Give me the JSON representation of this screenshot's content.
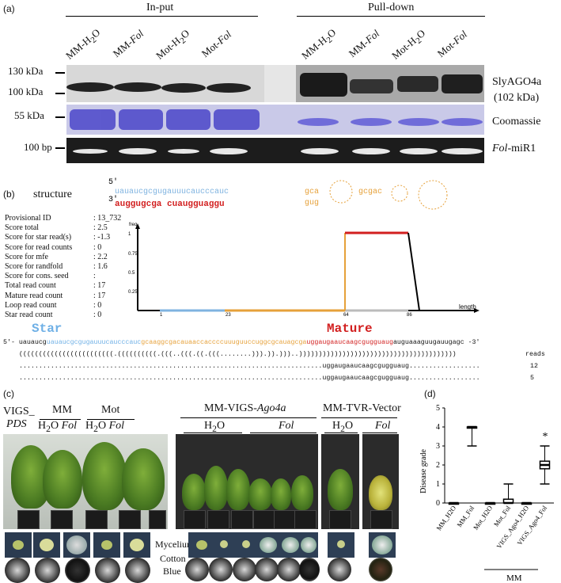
{
  "panel_a": {
    "label": "(a)",
    "input_header": "In-put",
    "pulldown_header": "Pull-down",
    "lanes": [
      "MM-H₂O",
      "MM-Fol",
      "Mot-H₂O",
      "Mot-Fol",
      "MM-H₂O",
      "MM-Fol",
      "Mot-H₂O",
      "Mot-Fol"
    ],
    "markers": [
      "130 kDa",
      "100 kDa",
      "55 kDa",
      "100 bp"
    ],
    "right_labels": {
      "ago": "SlyAGO4a",
      "ago_size": "(102 kDa)",
      "coomassie": "Coomassie",
      "mir_italic": "Fol",
      "mir_rest": "-miR1"
    }
  },
  "panel_b": {
    "label": "(b)",
    "structure_label": "structure",
    "five_prime": "5'",
    "three_prime": "3'",
    "stats": [
      [
        "Provisional ID",
        ": 13_732"
      ],
      [
        "Score total",
        ": 2.5"
      ],
      [
        "Score for star read(s)",
        ": -1.3"
      ],
      [
        "Score for read counts",
        ": 0"
      ],
      [
        "Score for mfe",
        ": 2.2"
      ],
      [
        "Score for randfold",
        ": 1.6"
      ],
      [
        "Score for cons. seed",
        ":"
      ],
      [
        "Total read count",
        ": 17"
      ],
      [
        "Mature read count",
        ": 17"
      ],
      [
        "Loop read count",
        ": 0"
      ],
      [
        "Star read count",
        ": 0"
      ]
    ],
    "plot": {
      "ylabel": "freq.",
      "xlabel": "length",
      "yticks": [
        "1",
        "0.75",
        "0.5",
        "0.25"
      ],
      "xticks": [
        "1",
        "23",
        "64",
        "86"
      ]
    },
    "star_label": "Star",
    "mature_label": "Mature",
    "seq_prefix": "5'-",
    "seq_start": "uauaucg",
    "seq_star": "uauaucgcgugauuucaucccauc",
    "seq_loop": "gcaaggcgacauaaccaccccuuuguuccuggcgcauagcga",
    "seq_mature": "uggaugaaucaagcgugguaug",
    "seq_end": "auguaaaguugauugagc",
    "seq_suffix": "-3'",
    "dotbracket": "((((((((((((((((((((((((.((((((((((.(((..(((.((.(((........))).)).)))..))))))))))))))))))))))))))))))))))))))))",
    "reads_header": "reads",
    "read1": "uggaugaaucaagcgugguaug",
    "read1_count": "12",
    "read2": "uggaugaaucaagcgugguaug",
    "read2_count": "5"
  },
  "panel_c": {
    "label": "(c)",
    "vigs": "VIGS",
    "pds": "PDS",
    "mm": "MM",
    "mot": "Mot",
    "h2o": "H₂O",
    "fol": "Fol",
    "mm_vigs": "MM-VIGS-",
    "ago4a": "Ago4a",
    "mm_tvr": "MM-TVR-Vector",
    "mycelium": "Mycelium",
    "cotton": "Cotton",
    "blue": "Blue"
  },
  "panel_d": {
    "label": "(d)",
    "ylabel": "Disease grade",
    "group_label": "MM",
    "asterisk": "*"
  },
  "chart_data": {
    "type": "box",
    "ylabel": "Disease grade",
    "ylim": [
      0,
      5
    ],
    "yticks": [
      0,
      1,
      2,
      3,
      4,
      5
    ],
    "categories": [
      "MM_H2O",
      "MM_Fol",
      "Mot_H2O",
      "Mot_Fol",
      "VIGS_Ago4_H2O",
      "VIGS_Ago4_Fol"
    ],
    "boxes": [
      {
        "min": 0,
        "q1": 0,
        "median": 0,
        "q3": 0,
        "max": 0
      },
      {
        "min": 3,
        "q1": 4,
        "median": 4,
        "q3": 4,
        "max": 4
      },
      {
        "min": 0,
        "q1": 0,
        "median": 0,
        "q3": 0,
        "max": 0
      },
      {
        "min": 0,
        "q1": 0,
        "median": 0,
        "q3": 0.2,
        "max": 1
      },
      {
        "min": 0,
        "q1": 0,
        "median": 0,
        "q3": 0,
        "max": 0
      },
      {
        "min": 1,
        "q1": 1.8,
        "median": 2,
        "q3": 2.2,
        "max": 3
      }
    ]
  }
}
